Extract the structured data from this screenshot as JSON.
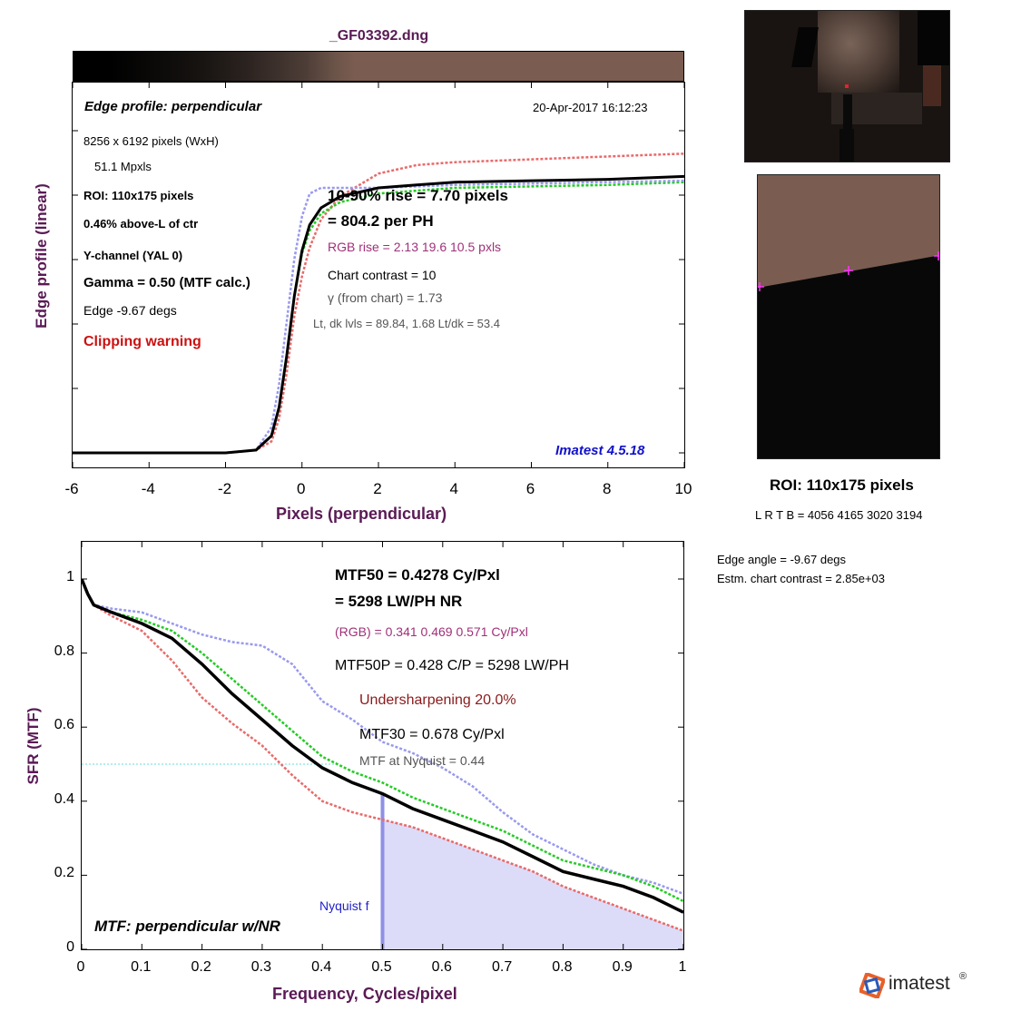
{
  "title": "_GF03392.dng",
  "colors": {
    "axis_label": "#5a1a55",
    "y_channel": "#000000",
    "red_channel": "#e86a6a",
    "green_channel": "#22cc22",
    "blue_channel": "#9999ee",
    "nyquist_fill": "#dcdcf8",
    "nyquist_line": "#8f8fe6",
    "clipping": "#cc1111",
    "version": "#1111cc",
    "rgb_text": "#a03078",
    "undersharpening": "#8b1a1a",
    "thumb_background": "#7a5c50"
  },
  "edge_panel": {
    "header": "Edge profile: perpendicular",
    "date": "20-Apr-2017 16:12:23",
    "size": "8256 x 6192 pixels (WxH)",
    "mpxls": "51.1 Mpxls",
    "roi": "ROI:  110x175 pixels",
    "above": "0.46% above-L of ctr",
    "channel": "Y-channel  (YAL 0)",
    "gamma": "Gamma = 0.50 (MTF calc.)",
    "edge": "Edge  -9.67 degs",
    "clipping": "Clipping warning",
    "rise": "10-90% rise = 7.70 pixels",
    "per_ph": "=  804.2 per PH",
    "rgb_rise": "RGB rise =   2.13    19.6    10.5 pxls",
    "contrast": "Chart contrast = 10",
    "gamma_chart": "γ (from chart) =  1.73",
    "levels": "Lt, dk lvls =  89.84,    1.68    Lt/dk =   53.4",
    "version": "Imatest 4.5.18",
    "ylabel": "Edge profile (linear)",
    "xlabel": "Pixels (perpendicular)",
    "xticks": [
      "-6",
      "-4",
      "-2",
      "0",
      "2",
      "4",
      "6",
      "8",
      "10"
    ]
  },
  "mtf_panel": {
    "mtf50": "MTF50 = 0.4278 Cy/Pxl",
    "lwph": "= 5298 LW/PH  NR",
    "rgb": "(RGB) = 0.341  0.469  0.571 Cy/Pxl",
    "mtf50p": "MTF50P = 0.428 C/P = 5298 LW/PH",
    "undersharp": "Undersharpening 20.0%",
    "mtf30": "MTF30 = 0.678 Cy/Pxl",
    "nyq_value": "MTF at Nyquist = 0.44",
    "nyq_label": "Nyquist f",
    "header": "MTF: perpendicular w/NR",
    "ylabel": "SFR (MTF)",
    "xlabel": "Frequency, Cycles/pixel",
    "xticks": [
      "0",
      "0.1",
      "0.2",
      "0.3",
      "0.4",
      "0.5",
      "0.6",
      "0.7",
      "0.8",
      "0.9",
      "1"
    ],
    "yticks": [
      "0",
      "0.2",
      "0.4",
      "0.6",
      "0.8",
      "1"
    ]
  },
  "right_panel": {
    "roi_title": "ROI:  110x175 pixels",
    "lrtb": "L R  T B = 4056 4165  3020 3194",
    "edge_angle": "Edge angle = -9.67 degs",
    "chart_contrast": "Estm. chart contrast = 2.85e+03"
  },
  "logo": {
    "text": "imatest",
    "mark": "®"
  },
  "chart_data": [
    {
      "type": "line",
      "xlabel": "Pixels (perpendicular)",
      "ylabel": "Edge profile (linear)",
      "xlim": [
        -6,
        10
      ],
      "ylim": [
        0,
        1.15
      ],
      "grid": false,
      "series": [
        {
          "values_x": [
            -6,
            -2,
            -1.2,
            -0.8,
            -0.6,
            -0.4,
            -0.2,
            0,
            0.2,
            0.5,
            1,
            2,
            3,
            4,
            6,
            8,
            10
          ],
          "values": [
            0,
            0,
            0.01,
            0.06,
            0.16,
            0.34,
            0.55,
            0.71,
            0.8,
            0.86,
            0.9,
            0.93,
            0.94,
            0.95,
            0.955,
            0.96,
            0.97
          ]
        },
        {
          "values_x": [
            -6,
            -2,
            -1.2,
            -0.8,
            -0.6,
            -0.4,
            -0.2,
            0,
            0.2,
            0.5,
            1,
            2,
            3,
            4,
            6,
            8,
            10
          ],
          "values": [
            0,
            0,
            0.01,
            0.04,
            0.12,
            0.28,
            0.48,
            0.62,
            0.72,
            0.82,
            0.9,
            0.98,
            1.01,
            1.02,
            1.03,
            1.04,
            1.05
          ]
        },
        {
          "values_x": [
            -6,
            -2,
            -1.2,
            -0.8,
            -0.6,
            -0.4,
            -0.2,
            0,
            0.2,
            0.5,
            1,
            2,
            3,
            4,
            6,
            8,
            10
          ],
          "values": [
            0,
            0,
            0.01,
            0.06,
            0.16,
            0.34,
            0.55,
            0.7,
            0.78,
            0.84,
            0.88,
            0.91,
            0.92,
            0.93,
            0.935,
            0.94,
            0.95
          ]
        },
        {
          "values_x": [
            -6,
            -2,
            -1.2,
            -0.8,
            -0.6,
            -0.4,
            -0.2,
            0,
            0.2,
            0.5,
            1,
            2,
            3,
            4,
            6,
            8,
            10
          ],
          "values": [
            0,
            0,
            0.01,
            0.09,
            0.24,
            0.46,
            0.68,
            0.83,
            0.91,
            0.93,
            0.93,
            0.93,
            0.935,
            0.94,
            0.945,
            0.95,
            0.955
          ]
        }
      ]
    },
    {
      "type": "line",
      "xlabel": "Frequency, Cycles/pixel",
      "ylabel": "SFR (MTF)",
      "xlim": [
        0,
        1
      ],
      "ylim": [
        0,
        1.05
      ],
      "grid": false,
      "series": [
        {
          "x": [
            0,
            0.01,
            0.02,
            0.05,
            0.1,
            0.15,
            0.2,
            0.25,
            0.3,
            0.35,
            0.4,
            0.45,
            0.5,
            0.55,
            0.6,
            0.65,
            0.7,
            0.75,
            0.8,
            0.85,
            0.9,
            0.95,
            1
          ],
          "values": [
            1,
            0.96,
            0.93,
            0.91,
            0.88,
            0.84,
            0.77,
            0.69,
            0.62,
            0.55,
            0.49,
            0.45,
            0.42,
            0.38,
            0.35,
            0.32,
            0.29,
            0.25,
            0.21,
            0.19,
            0.17,
            0.14,
            0.1
          ]
        },
        {
          "x": [
            0,
            0.01,
            0.02,
            0.05,
            0.1,
            0.15,
            0.2,
            0.25,
            0.3,
            0.35,
            0.4,
            0.45,
            0.5,
            0.55,
            0.6,
            0.65,
            0.7,
            0.75,
            0.8,
            0.85,
            0.9,
            0.95,
            1
          ],
          "values": [
            1,
            0.96,
            0.93,
            0.9,
            0.86,
            0.78,
            0.68,
            0.61,
            0.55,
            0.47,
            0.4,
            0.37,
            0.35,
            0.33,
            0.3,
            0.27,
            0.24,
            0.21,
            0.17,
            0.14,
            0.11,
            0.08,
            0.05
          ]
        },
        {
          "x": [
            0,
            0.01,
            0.02,
            0.05,
            0.1,
            0.15,
            0.2,
            0.25,
            0.3,
            0.35,
            0.4,
            0.45,
            0.5,
            0.55,
            0.6,
            0.65,
            0.7,
            0.75,
            0.8,
            0.85,
            0.9,
            0.95,
            1
          ],
          "values": [
            1,
            0.96,
            0.93,
            0.91,
            0.89,
            0.86,
            0.8,
            0.73,
            0.66,
            0.59,
            0.52,
            0.48,
            0.45,
            0.41,
            0.38,
            0.35,
            0.32,
            0.28,
            0.24,
            0.22,
            0.2,
            0.17,
            0.13
          ]
        },
        {
          "x": [
            0,
            0.01,
            0.02,
            0.05,
            0.1,
            0.15,
            0.2,
            0.25,
            0.3,
            0.35,
            0.4,
            0.45,
            0.5,
            0.55,
            0.6,
            0.65,
            0.7,
            0.75,
            0.8,
            0.85,
            0.9,
            0.95,
            1
          ],
          "values": [
            1,
            0.96,
            0.93,
            0.92,
            0.91,
            0.88,
            0.85,
            0.83,
            0.82,
            0.77,
            0.67,
            0.62,
            0.56,
            0.53,
            0.49,
            0.44,
            0.37,
            0.31,
            0.27,
            0.23,
            0.2,
            0.18,
            0.15
          ]
        }
      ]
    }
  ]
}
